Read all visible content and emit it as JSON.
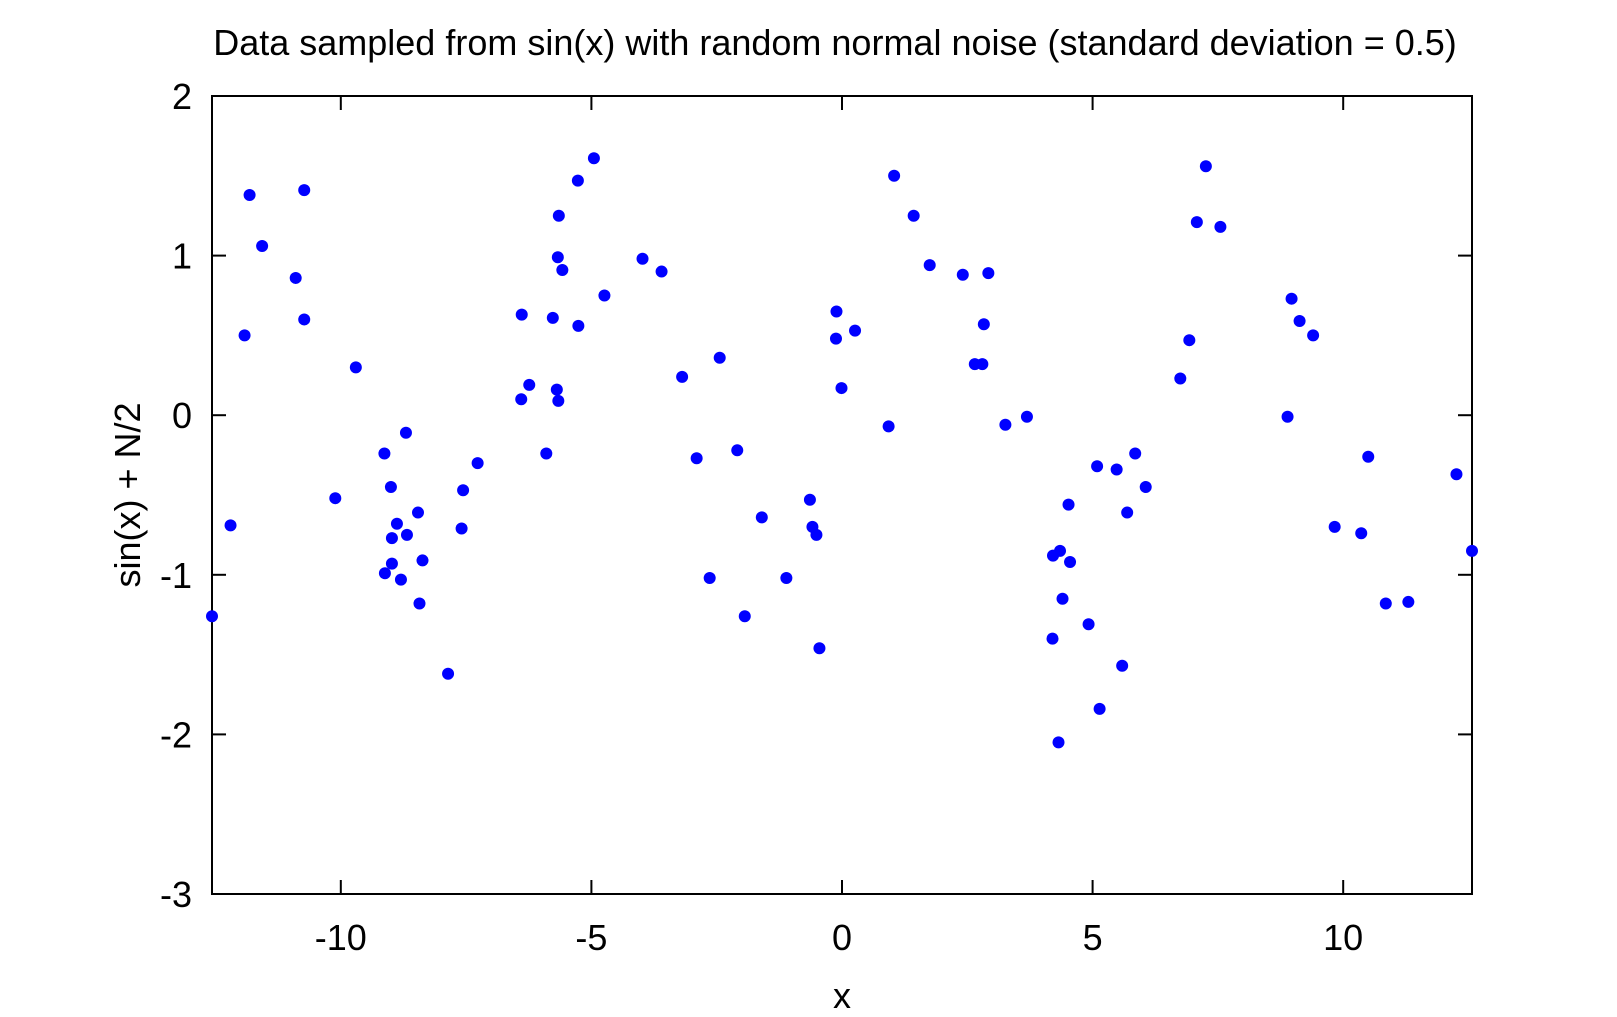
{
  "chart_data": {
    "type": "scatter",
    "title": "Data sampled from sin(x) with random normal noise (standard deviation = 0.5)",
    "xlabel": "x",
    "ylabel": "sin(x) + N/2",
    "xlim": [
      -12.57,
      12.57
    ],
    "ylim": [
      -3,
      2
    ],
    "xticks": [
      -10,
      -5,
      0,
      5,
      10
    ],
    "xtick_labels": [
      "-10",
      "-5",
      "0",
      "5",
      "10"
    ],
    "yticks": [
      -3,
      -2,
      -1,
      0,
      1,
      2
    ],
    "ytick_labels": [
      "-3",
      "-2",
      "-1",
      "0",
      "1",
      "2"
    ],
    "grid": false,
    "legend": "none",
    "point_color": "#0000ff",
    "series": [
      {
        "points": [
          [
            -12.57,
            -1.26
          ],
          [
            -12.2,
            -0.69
          ],
          [
            -11.92,
            0.5
          ],
          [
            -11.82,
            1.38
          ],
          [
            -11.57,
            1.06
          ],
          [
            -10.9,
            0.86
          ],
          [
            -10.73,
            1.41
          ],
          [
            -10.73,
            0.6
          ],
          [
            -10.11,
            -0.52
          ],
          [
            -9.7,
            0.3
          ],
          [
            -9.13,
            -0.24
          ],
          [
            -9.12,
            -0.99
          ],
          [
            -9.0,
            -0.45
          ],
          [
            -8.98,
            -0.77
          ],
          [
            -8.98,
            -0.93
          ],
          [
            -8.88,
            -0.68
          ],
          [
            -8.8,
            -1.03
          ],
          [
            -8.7,
            -0.11
          ],
          [
            -8.68,
            -0.75
          ],
          [
            -8.46,
            -0.61
          ],
          [
            -8.43,
            -1.18
          ],
          [
            -8.37,
            -0.91
          ],
          [
            -7.86,
            -1.62
          ],
          [
            -7.59,
            -0.71
          ],
          [
            -7.56,
            -0.47
          ],
          [
            -7.27,
            -0.3
          ],
          [
            -6.4,
            0.1
          ],
          [
            -6.39,
            0.63
          ],
          [
            -6.24,
            0.19
          ],
          [
            -5.9,
            -0.24
          ],
          [
            -5.77,
            0.61
          ],
          [
            -5.69,
            0.16
          ],
          [
            -5.67,
            0.99
          ],
          [
            -5.66,
            0.09
          ],
          [
            -5.65,
            1.25
          ],
          [
            -5.58,
            0.91
          ],
          [
            -5.27,
            1.47
          ],
          [
            -5.26,
            0.56
          ],
          [
            -4.95,
            1.61
          ],
          [
            -4.74,
            0.75
          ],
          [
            -3.98,
            0.98
          ],
          [
            -3.6,
            0.9
          ],
          [
            -3.19,
            0.24
          ],
          [
            -2.9,
            -0.27
          ],
          [
            -2.64,
            -1.02
          ],
          [
            -2.44,
            0.36
          ],
          [
            -2.09,
            -0.22
          ],
          [
            -1.94,
            -1.26
          ],
          [
            -1.6,
            -0.64
          ],
          [
            -1.11,
            -1.02
          ],
          [
            -0.64,
            -0.53
          ],
          [
            -0.59,
            -0.7
          ],
          [
            -0.51,
            -0.75
          ],
          [
            -0.45,
            -1.46
          ],
          [
            -0.12,
            0.48
          ],
          [
            -0.11,
            0.65
          ],
          [
            -0.01,
            0.17
          ],
          [
            0.26,
            0.53
          ],
          [
            0.93,
            -0.07
          ],
          [
            1.04,
            1.5
          ],
          [
            1.43,
            1.25
          ],
          [
            1.75,
            0.94
          ],
          [
            2.41,
            0.88
          ],
          [
            2.65,
            0.32
          ],
          [
            2.8,
            0.32
          ],
          [
            2.83,
            0.57
          ],
          [
            2.92,
            0.89
          ],
          [
            3.26,
            -0.06
          ],
          [
            3.69,
            -0.01
          ],
          [
            4.2,
            -1.4
          ],
          [
            4.21,
            -0.88
          ],
          [
            4.32,
            -2.05
          ],
          [
            4.35,
            -0.85
          ],
          [
            4.4,
            -1.15
          ],
          [
            4.52,
            -0.56
          ],
          [
            4.55,
            -0.92
          ],
          [
            4.92,
            -1.31
          ],
          [
            5.09,
            -0.32
          ],
          [
            5.14,
            -1.84
          ],
          [
            5.48,
            -0.34
          ],
          [
            5.59,
            -1.57
          ],
          [
            5.69,
            -0.61
          ],
          [
            5.85,
            -0.24
          ],
          [
            6.06,
            -0.45
          ],
          [
            6.75,
            0.23
          ],
          [
            6.93,
            0.47
          ],
          [
            7.08,
            1.21
          ],
          [
            7.26,
            1.56
          ],
          [
            7.55,
            1.18
          ],
          [
            8.89,
            -0.01
          ],
          [
            8.97,
            0.73
          ],
          [
            9.13,
            0.59
          ],
          [
            9.4,
            0.5
          ],
          [
            9.83,
            -0.7
          ],
          [
            10.36,
            -0.74
          ],
          [
            10.5,
            -0.26
          ],
          [
            10.85,
            -1.18
          ],
          [
            11.3,
            -1.17
          ],
          [
            12.26,
            -0.37
          ],
          [
            12.57,
            -0.85
          ]
        ]
      }
    ]
  }
}
